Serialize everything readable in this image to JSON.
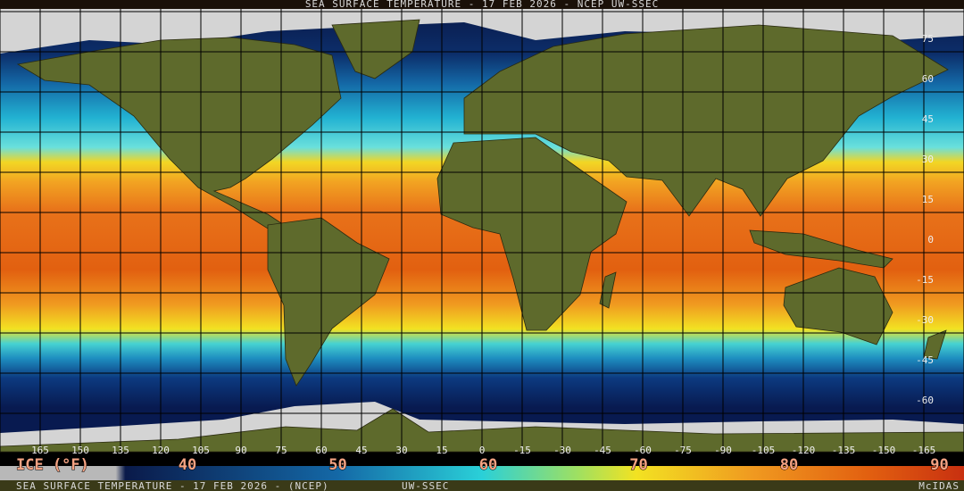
{
  "header": {
    "title": "SEA SURFACE TEMPERATURE - 17 FEB 2026 - NCEP UW-SSEC"
  },
  "map": {
    "latitude_labels": [
      75,
      60,
      45,
      30,
      15,
      0,
      -15,
      -30,
      -45,
      -60
    ],
    "longitude_labels": [
      165,
      150,
      135,
      120,
      105,
      90,
      75,
      60,
      45,
      30,
      15,
      0,
      -15,
      -30,
      -45,
      -60,
      -75,
      -90,
      -105,
      -120,
      -135,
      -150,
      -165
    ]
  },
  "legend": {
    "ice_label": "ICE (°F)",
    "values": [
      40,
      50,
      60,
      70,
      80,
      90
    ]
  },
  "footer": {
    "left": "SEA SURFACE TEMPERATURE - 17 FEB 2026 - (NCEP)",
    "center": "UW-SSEC",
    "right": "McIDAS"
  }
}
